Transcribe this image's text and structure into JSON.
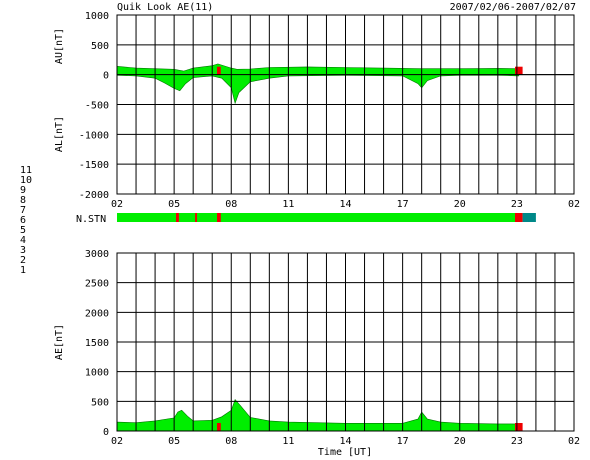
{
  "header": {
    "title": "Quik Look AE(11)",
    "date_range": "2007/02/06-2007/02/07"
  },
  "colors": {
    "trace_fill": "#00ee00",
    "missing": "#ee0000",
    "station_extra": "#008888",
    "grid": "#000000",
    "station_count": [
      "#0000ff",
      "#cc0066",
      "#008b8b",
      "#888888",
      "#cccccc",
      "#ff0000",
      "#00dd00",
      "#dddd00",
      "#0000aa",
      "#ff00ff",
      "#00dddd"
    ]
  },
  "station_legend": [
    "1",
    "2",
    "3",
    "4",
    "5",
    "6",
    "7",
    "8",
    "9",
    "10",
    "11"
  ],
  "x_axis": {
    "tick_labels": [
      "02",
      "05",
      "08",
      "11",
      "14",
      "17",
      "20",
      "23",
      "02"
    ],
    "tick_hours": [
      2,
      5,
      8,
      11,
      14,
      17,
      20,
      23,
      26
    ],
    "minor_step_hours": 1,
    "range_hours": [
      2,
      26
    ],
    "label": "Time [UT]"
  },
  "chart_data": [
    {
      "type": "area",
      "ylabel_upper": "AU[nT]",
      "ylabel_lower": "AL[nT]",
      "ylim": [
        -2000,
        1000
      ],
      "y_ticks": [
        -2000,
        -1500,
        -1000,
        -500,
        0,
        500,
        1000
      ],
      "y_tick_labels": [
        "-2000",
        "-1500",
        "-1000",
        "-500",
        "0",
        "500",
        "1000"
      ],
      "grid": true,
      "data_end_hour": 23.1,
      "missing_hours": [
        [
          7.25,
          7.45
        ],
        [
          22.9,
          23.3
        ]
      ],
      "series": [
        {
          "x": [
            2,
            3,
            4,
            5,
            5.5,
            6,
            7,
            7.3,
            8,
            8.3,
            9,
            10,
            12,
            14,
            16,
            18,
            20,
            22,
            23.1
          ],
          "values": [
            140,
            110,
            100,
            90,
            60,
            110,
            150,
            180,
            110,
            90,
            95,
            120,
            130,
            120,
            110,
            100,
            100,
            105,
            100
          ]
        },
        {
          "x": [
            2,
            3,
            4,
            4.5,
            5,
            5.3,
            5.6,
            6,
            7,
            7.5,
            8,
            8.2,
            8.4,
            9,
            10,
            11,
            14,
            17,
            17.8,
            18,
            18.3,
            19,
            20,
            22,
            23.1
          ],
          "values": [
            -10,
            -20,
            -60,
            -140,
            -230,
            -270,
            -150,
            -50,
            -20,
            -60,
            -220,
            -480,
            -300,
            -120,
            -60,
            -20,
            -10,
            -20,
            -150,
            -220,
            -100,
            -20,
            -10,
            -10,
            -20
          ]
        }
      ]
    },
    {
      "type": "area",
      "ylabel": "N.STN",
      "missing_hours": [
        [
          5.1,
          5.25
        ],
        [
          6.1,
          6.2
        ],
        [
          7.25,
          7.45
        ],
        [
          22.9,
          23.3
        ]
      ],
      "extra_hours": [
        [
          23.3,
          24.0
        ]
      ]
    },
    {
      "type": "area",
      "ylabel": "AE[nT]",
      "xlabel": "Time [UT]",
      "ylim": [
        0,
        3000
      ],
      "y_ticks": [
        0,
        500,
        1000,
        1500,
        2000,
        2500,
        3000
      ],
      "y_tick_labels": [
        "0",
        "500",
        "1000",
        "1500",
        "2000",
        "2500",
        "3000"
      ],
      "grid": true,
      "data_end_hour": 23.1,
      "missing_hours": [
        [
          7.25,
          7.45
        ],
        [
          22.9,
          23.3
        ]
      ],
      "series": [
        {
          "x": [
            2,
            3,
            4,
            5,
            5.2,
            5.4,
            5.7,
            6,
            7,
            7.5,
            8,
            8.2,
            8.5,
            9,
            10,
            11,
            14,
            17,
            17.8,
            18,
            18.3,
            19,
            20,
            22,
            23.1
          ],
          "values": [
            150,
            140,
            170,
            220,
            320,
            350,
            250,
            170,
            180,
            240,
            350,
            530,
            420,
            230,
            170,
            150,
            130,
            130,
            200,
            320,
            200,
            150,
            130,
            120,
            120
          ]
        }
      ]
    }
  ]
}
